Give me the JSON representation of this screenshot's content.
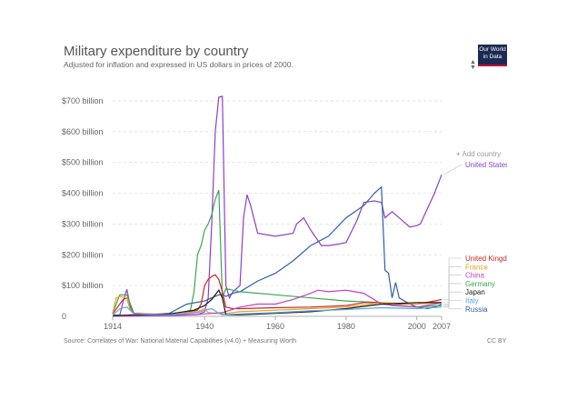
{
  "header": {
    "title": "Military expenditure by country",
    "subtitle": "Adjusted for inflation and expressed in US dollars in prices of 2000.",
    "logo_line1": "Our World",
    "logo_line2": "in Data"
  },
  "footer": {
    "source": "Source: Correlates of War: National Material Capabilities (v4.0) + Measuring Worth",
    "license": "CC BY"
  },
  "controls": {
    "add_country": "+ Add country"
  },
  "chart_data": {
    "type": "line",
    "title": "Military expenditure by country",
    "subtitle": "Adjusted for inflation and expressed in US dollars in prices of 2000.",
    "xlim": [
      1914,
      2007
    ],
    "ylim": [
      0,
      750
    ],
    "xticks": [
      "1914",
      "1940",
      "1960",
      "1980",
      "2000",
      "2007"
    ],
    "xtick_values": [
      1914,
      1940,
      1960,
      1980,
      2000,
      2007
    ],
    "yticks": [
      "0",
      "$100 billion",
      "$200 billion",
      "$300 billion",
      "$400 billion",
      "$500 billion",
      "$600 billion",
      "$700 billion"
    ],
    "ytick_values": [
      0,
      100,
      200,
      300,
      400,
      500,
      600,
      700
    ],
    "grid": true,
    "legend": "right",
    "series": [
      {
        "name": "United States",
        "color": "#8e3fc6",
        "x": [
          1914,
          1916,
          1917,
          1918,
          1919,
          1920,
          1922,
          1930,
          1938,
          1940,
          1941,
          1942,
          1943,
          1944,
          1945,
          1946,
          1947,
          1948,
          1949,
          1950,
          1951,
          1952,
          1953,
          1955,
          1960,
          1965,
          1966,
          1968,
          1970,
          1973,
          1975,
          1978,
          1980,
          1983,
          1985,
          1988,
          1990,
          1991,
          1993,
          1995,
          1998,
          2000,
          2001,
          2003,
          2005,
          2007
        ],
        "y": [
          3,
          4,
          50,
          88,
          30,
          8,
          4,
          5,
          6,
          15,
          60,
          300,
          600,
          712,
          715,
          100,
          60,
          80,
          90,
          100,
          320,
          395,
          360,
          270,
          260,
          270,
          300,
          320,
          280,
          230,
          230,
          235,
          240,
          310,
          370,
          375,
          370,
          320,
          340,
          320,
          290,
          295,
          300,
          350,
          400,
          460
        ]
      },
      {
        "name": "Russia",
        "color": "#2e5fa8",
        "x": [
          1914,
          1920,
          1930,
          1935,
          1940,
          1941,
          1942,
          1943,
          1944,
          1945,
          1946,
          1948,
          1950,
          1955,
          1960,
          1965,
          1970,
          1975,
          1980,
          1985,
          1988,
          1989,
          1990,
          1991,
          1992,
          1993,
          1994,
          1995,
          1998,
          2000,
          2003,
          2005,
          2007
        ],
        "y": [
          4,
          2,
          10,
          40,
          50,
          55,
          60,
          65,
          70,
          70,
          65,
          75,
          80,
          115,
          140,
          180,
          230,
          260,
          320,
          360,
          400,
          410,
          420,
          150,
          140,
          60,
          110,
          60,
          40,
          30,
          25,
          30,
          40
        ]
      },
      {
        "name": "Germany",
        "color": "#3ca554",
        "x": [
          1914,
          1916,
          1918,
          1920,
          1930,
          1934,
          1936,
          1937,
          1938,
          1939,
          1940,
          1941,
          1942,
          1943,
          1944,
          1945,
          1946,
          1950,
          1960,
          1970,
          1980,
          1990,
          1993,
          2000,
          2007
        ],
        "y": [
          10,
          70,
          70,
          10,
          5,
          10,
          20,
          80,
          200,
          230,
          280,
          300,
          330,
          380,
          410,
          60,
          90,
          80,
          70,
          60,
          50,
          45,
          35,
          30,
          35
        ]
      },
      {
        "name": "United Kingdom",
        "color": "#c62828",
        "x": [
          1914,
          1916,
          1917,
          1918,
          1919,
          1920,
          1930,
          1938,
          1939,
          1940,
          1941,
          1942,
          1943,
          1944,
          1945,
          1946,
          1948,
          1950,
          1960,
          1970,
          1980,
          1985,
          1990,
          1995,
          2000,
          2005,
          2007
        ],
        "y": [
          8,
          40,
          55,
          60,
          20,
          10,
          5,
          20,
          40,
          100,
          120,
          130,
          135,
          120,
          80,
          30,
          25,
          25,
          28,
          30,
          35,
          45,
          45,
          40,
          40,
          50,
          55
        ]
      },
      {
        "name": "France",
        "color": "#e8a31a",
        "x": [
          1914,
          1915,
          1916,
          1918,
          1919,
          1920,
          1930,
          1938,
          1940,
          1941,
          1945,
          1950,
          1960,
          1970,
          1980,
          1990,
          2000,
          2007
        ],
        "y": [
          10,
          60,
          65,
          60,
          20,
          8,
          8,
          15,
          25,
          12,
          8,
          15,
          20,
          25,
          30,
          45,
          40,
          45
        ]
      },
      {
        "name": "China",
        "color": "#c33fbf",
        "x": [
          1914,
          1920,
          1930,
          1937,
          1940,
          1945,
          1950,
          1955,
          1960,
          1965,
          1970,
          1972,
          1975,
          1980,
          1985,
          1990,
          1995,
          2000,
          2005,
          2007
        ],
        "y": [
          1,
          1,
          2,
          5,
          8,
          12,
          30,
          40,
          40,
          55,
          75,
          85,
          80,
          85,
          75,
          40,
          35,
          30,
          40,
          45
        ]
      },
      {
        "name": "Japan",
        "color": "#1a1a1a",
        "x": [
          1914,
          1920,
          1930,
          1937,
          1940,
          1941,
          1942,
          1943,
          1944,
          1945,
          1946,
          1950,
          1960,
          1970,
          1980,
          1990,
          2000,
          2007
        ],
        "y": [
          2,
          5,
          8,
          20,
          35,
          45,
          55,
          70,
          85,
          60,
          5,
          5,
          10,
          15,
          25,
          40,
          45,
          45
        ]
      },
      {
        "name": "Italy",
        "color": "#5aa8e8",
        "x": [
          1914,
          1916,
          1918,
          1920,
          1930,
          1935,
          1938,
          1940,
          1942,
          1944,
          1945,
          1950,
          1960,
          1970,
          1980,
          1990,
          2000,
          2007
        ],
        "y": [
          3,
          25,
          30,
          8,
          5,
          10,
          12,
          20,
          25,
          10,
          5,
          8,
          12,
          18,
          22,
          28,
          25,
          30
        ]
      }
    ]
  }
}
